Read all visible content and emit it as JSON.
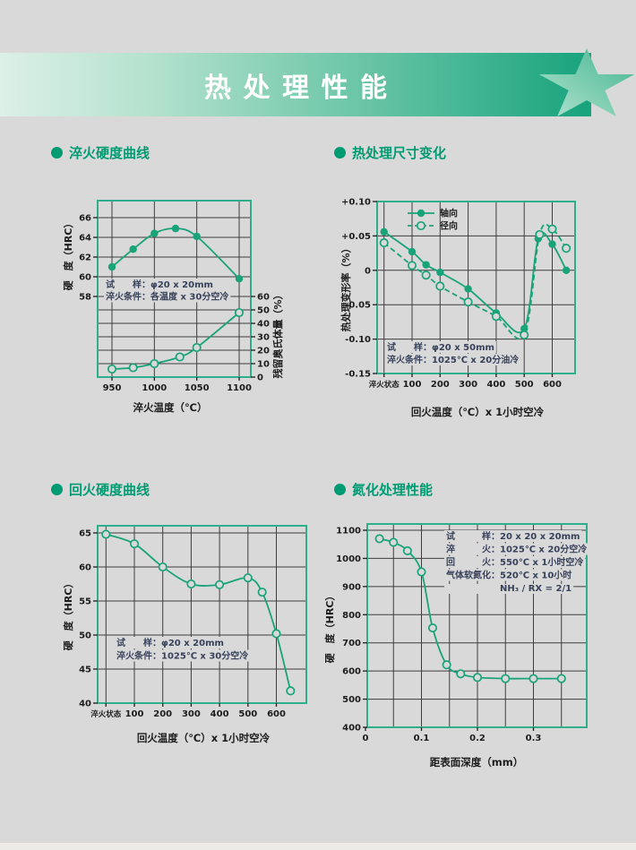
{
  "page": {
    "title": "热处理性能"
  },
  "colors": {
    "page_bg": "#d9d9d9",
    "accent": "#18a378",
    "plot_border": "#2fae8b",
    "grid": "#3d3d3d",
    "tick_text": "#1c1c1c",
    "annotation_text": "#37415a",
    "section_title": "#009b72",
    "banner_text": "#ffffff",
    "banner_gradient_left": "#dcf0e8",
    "banner_gradient_right": "#17a37c",
    "star_light": "#b2e3cf",
    "star_dark": "#44b591"
  },
  "sections": [
    {
      "title": "淬火硬度曲线"
    },
    {
      "title": "热处理尺寸变化"
    },
    {
      "title": "回火硬度曲线"
    },
    {
      "title": "氮化处理性能"
    }
  ],
  "chart_data": [
    {
      "id": "quench_hardness",
      "type": "line",
      "title": "淬火硬度曲线",
      "xlabel": "淬火温度（℃）",
      "ylabel_left": "硬　度（HRC）",
      "ylabel_right": "残留奥氏体量（%）",
      "x_gridlines": [
        950,
        1000,
        1050,
        1100
      ],
      "x_ticks": [
        {
          "v": 950,
          "label": "950"
        },
        {
          "v": 1000,
          "label": "1000"
        },
        {
          "v": 1050,
          "label": "1050"
        },
        {
          "v": 1100,
          "label": "1100"
        }
      ],
      "y_ticks_left": [
        {
          "v": 66,
          "label": "66"
        },
        {
          "v": 64,
          "label": "64"
        },
        {
          "v": 62,
          "label": "62"
        },
        {
          "v": 60,
          "label": "60"
        },
        {
          "v": 58,
          "label": "58"
        }
      ],
      "y_ticks_right": [
        {
          "v": 60,
          "label": "60"
        },
        {
          "v": 50,
          "label": "50"
        },
        {
          "v": 40,
          "label": "40"
        },
        {
          "v": 30,
          "label": "30"
        },
        {
          "v": 20,
          "label": "20"
        },
        {
          "v": 10,
          "label": "10"
        },
        {
          "v": 0,
          "label": "0"
        }
      ],
      "series": [
        {
          "key": "hardness",
          "name": "硬度",
          "axis": "left",
          "marker": "filled",
          "dash": false,
          "x": [
            950,
            975,
            1000,
            1025,
            1050,
            1100
          ],
          "y": [
            61.0,
            62.8,
            64.4,
            64.9,
            64.1,
            59.8
          ]
        },
        {
          "key": "retained_austenite",
          "name": "残留奥氏体量",
          "axis": "right",
          "marker": "open",
          "dash": false,
          "x": [
            950,
            975,
            1000,
            1030,
            1050,
            1100
          ],
          "y": [
            6,
            7,
            10,
            15,
            22,
            48
          ]
        }
      ],
      "annotation": [
        "试　　样：φ20 x 20mm",
        "淬火条件：各温度 x 30分空冷"
      ]
    },
    {
      "id": "dimension_change",
      "type": "line",
      "title": "热处理尺寸变化",
      "xlabel": "回火温度（℃）x 1小时空冷",
      "ylabel_left": "热处理变形率（%）",
      "x_gridlines": [
        0,
        100,
        200,
        300,
        400,
        500,
        600
      ],
      "x_ticks": [
        {
          "v": 0,
          "label": "淬火状态",
          "small": true
        },
        {
          "v": 100,
          "label": "100"
        },
        {
          "v": 200,
          "label": "200"
        },
        {
          "v": 300,
          "label": "300"
        },
        {
          "v": 400,
          "label": "400"
        },
        {
          "v": 500,
          "label": "500"
        },
        {
          "v": 600,
          "label": "600"
        }
      ],
      "y_ticks_left": [
        {
          "v": 0.1,
          "label": "+0.10"
        },
        {
          "v": 0.05,
          "label": "+0.05"
        },
        {
          "v": 0,
          "label": "0"
        },
        {
          "v": -0.05,
          "label": "-0.05"
        },
        {
          "v": -0.1,
          "label": "-0.10"
        },
        {
          "v": -0.15,
          "label": "-0.15"
        }
      ],
      "legend": [
        {
          "label": "轴向",
          "marker": "filled",
          "dash": false
        },
        {
          "label": "径向",
          "marker": "open",
          "dash": true
        }
      ],
      "series": [
        {
          "key": "axial",
          "name": "轴向",
          "axis": "left",
          "marker": "filled",
          "dash": false,
          "x": [
            0,
            100,
            150,
            200,
            300,
            400,
            500,
            550,
            600,
            650
          ],
          "y": [
            0.056,
            0.027,
            0.008,
            -0.003,
            -0.027,
            -0.062,
            -0.085,
            0.046,
            0.038,
            0.0
          ]
        },
        {
          "key": "radial",
          "name": "径向",
          "axis": "left",
          "marker": "open",
          "dash": true,
          "x": [
            0,
            100,
            150,
            200,
            300,
            400,
            500,
            555,
            600,
            650
          ],
          "y": [
            0.04,
            0.007,
            -0.007,
            -0.023,
            -0.046,
            -0.067,
            -0.094,
            0.052,
            0.06,
            0.032
          ]
        }
      ],
      "annotation": [
        "试　　样：φ20 x 50mm",
        "淬火条件：1025℃ x 20分油冷"
      ]
    },
    {
      "id": "temper_hardness",
      "type": "line",
      "title": "回火硬度曲线",
      "xlabel": "回火温度（℃）x 1小时空冷",
      "ylabel_left": "硬　度（HRC）",
      "x_gridlines": [
        0,
        100,
        200,
        300,
        400,
        500,
        600
      ],
      "x_ticks": [
        {
          "v": 0,
          "label": "淬火状态",
          "small": true
        },
        {
          "v": 100,
          "label": "100"
        },
        {
          "v": 200,
          "label": "200"
        },
        {
          "v": 300,
          "label": "300"
        },
        {
          "v": 400,
          "label": "400"
        },
        {
          "v": 500,
          "label": "500"
        },
        {
          "v": 600,
          "label": "600"
        }
      ],
      "y_ticks_left": [
        {
          "v": 65,
          "label": "65"
        },
        {
          "v": 60,
          "label": "60"
        },
        {
          "v": 55,
          "label": "55"
        },
        {
          "v": 50,
          "label": "50"
        },
        {
          "v": 45,
          "label": "45"
        },
        {
          "v": 40,
          "label": "40"
        }
      ],
      "series": [
        {
          "key": "temper_hardness",
          "name": "硬度",
          "axis": "left",
          "marker": "open",
          "dash": false,
          "x": [
            0,
            100,
            200,
            300,
            400,
            500,
            550,
            600,
            650
          ],
          "y": [
            64.8,
            63.4,
            60.0,
            57.5,
            57.4,
            58.4,
            56.3,
            50.2,
            41.8
          ]
        }
      ],
      "annotation": [
        "试　　样：φ20 x 20mm",
        "淬火条件：1025℃ x 30分空冷"
      ]
    },
    {
      "id": "nitriding",
      "type": "line",
      "title": "氮化处理性能",
      "xlabel": "距表面深度（mm）",
      "ylabel_left": "硬　度（HRC）",
      "x_gridlines": [
        0.05,
        0.1,
        0.15,
        0.2,
        0.25,
        0.3,
        0.35
      ],
      "x_ticks": [
        {
          "v": 0,
          "label": "0"
        },
        {
          "v": 0.1,
          "label": "0.1"
        },
        {
          "v": 0.2,
          "label": "0.2"
        },
        {
          "v": 0.3,
          "label": "0.3"
        }
      ],
      "y_ticks_left": [
        {
          "v": 1100,
          "label": "1100"
        },
        {
          "v": 1000,
          "label": "1000"
        },
        {
          "v": 900,
          "label": "900"
        },
        {
          "v": 800,
          "label": "800"
        },
        {
          "v": 700,
          "label": "700"
        },
        {
          "v": 600,
          "label": "600"
        },
        {
          "v": 500,
          "label": "500"
        },
        {
          "v": 400,
          "label": "400"
        }
      ],
      "series": [
        {
          "key": "nitride_hardness",
          "name": "硬度",
          "axis": "left",
          "marker": "open",
          "dash": false,
          "x": [
            0.025,
            0.05,
            0.075,
            0.1,
            0.12,
            0.145,
            0.17,
            0.2,
            0.25,
            0.3,
            0.35
          ],
          "y": [
            1070,
            1057,
            1027,
            952,
            753,
            622,
            590,
            577,
            573,
            573,
            573
          ]
        }
      ],
      "annotation": [
        "试　　　样：20 x 20 x 20mm",
        "淬　　　火：1025℃ x 20分空冷",
        "回　　　火：550℃ x 1小时空冷",
        "气体软氮化：520℃ x 10小时",
        "　　　　　　NH₃ / RX = 2/1"
      ]
    }
  ]
}
